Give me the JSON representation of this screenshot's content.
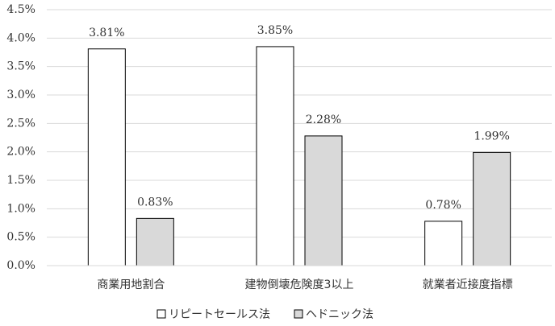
{
  "chart_data": {
    "type": "bar",
    "categories": [
      "商業用地割合",
      "建物倒壊危険度3以上",
      "就業者近接度指標"
    ],
    "series": [
      {
        "name": "リピートセールス法",
        "color": "#ffffff",
        "values": [
          3.81,
          3.85,
          0.78
        ],
        "value_labels": [
          "3.81%",
          "3.85%",
          "0.78%"
        ]
      },
      {
        "name": "ヘドニック法",
        "color": "#d9d9d9",
        "values": [
          0.83,
          2.28,
          1.99
        ],
        "value_labels": [
          "0.83%",
          "2.28%",
          "1.99%"
        ]
      }
    ],
    "ylim": [
      0,
      4.5
    ],
    "yticks": [
      {
        "value": 0,
        "label": "0.0%"
      },
      {
        "value": 0.5,
        "label": "0.5%"
      },
      {
        "value": 1,
        "label": "1.0%"
      },
      {
        "value": 1.5,
        "label": "1.5%"
      },
      {
        "value": 2,
        "label": "2.0%"
      },
      {
        "value": 2.5,
        "label": "2.5%"
      },
      {
        "value": 3,
        "label": "3.0%"
      },
      {
        "value": 3.5,
        "label": "3.5%"
      },
      {
        "value": 4,
        "label": "4.0%"
      },
      {
        "value": 4.5,
        "label": "4.5%"
      }
    ],
    "grid": true,
    "legend": "bottom"
  }
}
